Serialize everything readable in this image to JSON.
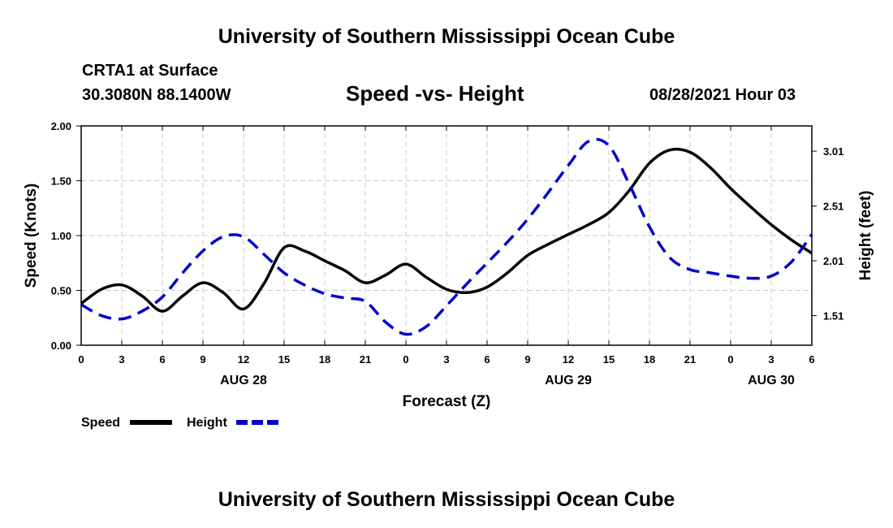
{
  "header": {
    "title_top": "University of Southern Mississippi Ocean Cube",
    "station": "CRTA1 at Surface",
    "coords": "30.3080N  88.1400W",
    "datetime": "08/28/2021 Hour 03",
    "title_bottom": "University of Southern Mississippi Ocean Cube"
  },
  "chart_data": {
    "type": "line",
    "title": "Speed -vs- Height",
    "xlabel": "Forecast (Z)",
    "ylabel_left": "Speed (Knots)",
    "ylabel_right": "Height (feet)",
    "x_range_hours": [
      0,
      54
    ],
    "x_ticks": [
      {
        "h": 0,
        "label": "0"
      },
      {
        "h": 3,
        "label": "3"
      },
      {
        "h": 6,
        "label": "6"
      },
      {
        "h": 9,
        "label": "9"
      },
      {
        "h": 12,
        "label": "12"
      },
      {
        "h": 15,
        "label": "15"
      },
      {
        "h": 18,
        "label": "18"
      },
      {
        "h": 21,
        "label": "21"
      },
      {
        "h": 24,
        "label": "0"
      },
      {
        "h": 27,
        "label": "3"
      },
      {
        "h": 30,
        "label": "6"
      },
      {
        "h": 33,
        "label": "9"
      },
      {
        "h": 36,
        "label": "12"
      },
      {
        "h": 39,
        "label": "15"
      },
      {
        "h": 42,
        "label": "18"
      },
      {
        "h": 45,
        "label": "21"
      },
      {
        "h": 48,
        "label": "0"
      },
      {
        "h": 51,
        "label": "3"
      },
      {
        "h": 54,
        "label": "6"
      }
    ],
    "date_labels": [
      {
        "h": 12,
        "label": "AUG 28"
      },
      {
        "h": 36,
        "label": "AUG 29"
      },
      {
        "h": 51,
        "label": "AUG 30"
      }
    ],
    "ylim_left": [
      0,
      2
    ],
    "yticks_left": [
      "0.00",
      "0.50",
      "1.00",
      "1.50",
      "2.00"
    ],
    "ylim_right": [
      1.24,
      3.24
    ],
    "yticks_right": [
      "1.51",
      "2.01",
      "2.51",
      "3.01"
    ],
    "grid": true,
    "series": [
      {
        "name": "Speed",
        "axis": "left",
        "color": "#000000",
        "dash": "solid",
        "x": [
          0,
          1.5,
          3,
          4.5,
          6,
          7.5,
          9,
          10.5,
          12,
          13.5,
          15,
          16.5,
          18,
          19.5,
          21,
          22.5,
          24,
          25.5,
          27,
          28.5,
          30,
          31.5,
          33,
          34.5,
          36,
          37.5,
          39,
          40.5,
          42,
          43.5,
          45,
          46.5,
          48,
          49.5,
          51,
          52.5,
          54
        ],
        "values": [
          0.38,
          0.51,
          0.55,
          0.45,
          0.31,
          0.45,
          0.57,
          0.48,
          0.33,
          0.56,
          0.89,
          0.86,
          0.77,
          0.68,
          0.57,
          0.64,
          0.74,
          0.62,
          0.51,
          0.48,
          0.53,
          0.66,
          0.82,
          0.92,
          1.01,
          1.1,
          1.21,
          1.41,
          1.66,
          1.78,
          1.76,
          1.62,
          1.43,
          1.26,
          1.1,
          0.96,
          0.84
        ]
      },
      {
        "name": "Height",
        "axis": "right",
        "color": "#0000CC",
        "dash": "dashed",
        "x": [
          0,
          1.5,
          3,
          4.5,
          6,
          7.5,
          9,
          10.5,
          12,
          13.5,
          15,
          16.5,
          18,
          19.5,
          21,
          22.5,
          24,
          25.5,
          27,
          28.5,
          30,
          31.5,
          33,
          34.5,
          36,
          37.5,
          39,
          40.5,
          42,
          43.5,
          45,
          46.5,
          48,
          49.5,
          51,
          52.5,
          54
        ],
        "values": [
          1.61,
          1.51,
          1.48,
          1.55,
          1.68,
          1.9,
          2.1,
          2.23,
          2.23,
          2.07,
          1.9,
          1.79,
          1.71,
          1.67,
          1.64,
          1.45,
          1.34,
          1.41,
          1.6,
          1.8,
          1.99,
          2.18,
          2.39,
          2.63,
          2.88,
          3.1,
          3.06,
          2.71,
          2.32,
          2.04,
          1.93,
          1.9,
          1.87,
          1.85,
          1.87,
          2.0,
          2.25
        ]
      }
    ],
    "legend": [
      {
        "label": "Speed",
        "color": "#000000",
        "dash": "solid"
      },
      {
        "label": "Height",
        "color": "#0000CC",
        "dash": "dashed"
      }
    ],
    "legend_position": "bottom-left"
  }
}
